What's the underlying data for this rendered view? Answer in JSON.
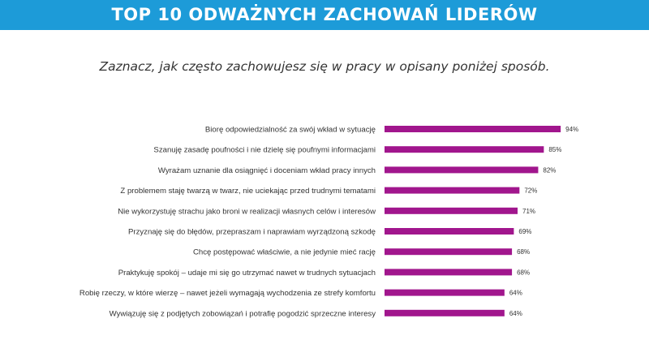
{
  "header": {
    "title": "TOP 10 ODWAŻNYCH ZACHOWAŃ LIDERÓW",
    "subtitle": "Zaznacz, jak często zachowujesz się w pracy w opisany poniżej sposób."
  },
  "colors": {
    "banner": "#1d9bd8",
    "bar": "#a1168d"
  },
  "chart_data": {
    "type": "bar",
    "orientation": "horizontal",
    "categories": [
      "Biorę odpowiedzialność za swój wkład w sytuację",
      "Szanuję zasadę poufności i nie dzielę się poufnymi informacjami",
      "Wyrażam uznanie dla osiągnięć i doceniam wkład pracy innych",
      "Z problemem staję twarzą w twarz, nie uciekając przed trudnymi tematami",
      "Nie wykorzystuję strachu jako broni w realizacji własnych celów i interesów",
      "Przyznaję się do błędów, przepraszam i naprawiam wyrządzoną szkodę",
      "Chcę postępować właściwie, a nie jedynie mieć rację",
      "Praktykuję spokój – udaje mi się go utrzymać nawet w trudnych sytuacjach",
      "Robię rzeczy, w które wierzę – nawet jeżeli wymagają wychodzenia ze strefy komfortu",
      "Wywiązuję się z podjętych zobowiązań i potrafię pogodzić sprzeczne interesy"
    ],
    "values": [
      94,
      85,
      82,
      72,
      71,
      69,
      68,
      68,
      64,
      64
    ],
    "value_labels": [
      "94%",
      "85%",
      "82%",
      "72%",
      "71%",
      "69%",
      "68%",
      "68%",
      "64%",
      "64%"
    ],
    "unit": "%",
    "xlim": [
      0,
      100
    ],
    "grid": false,
    "legend": "none"
  }
}
